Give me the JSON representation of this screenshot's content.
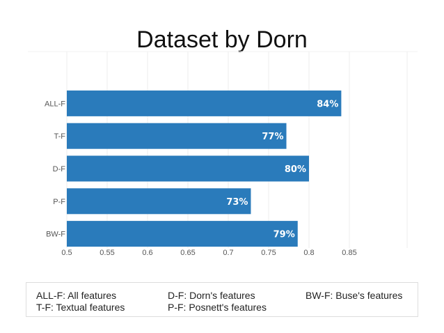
{
  "chart_data": {
    "type": "bar",
    "orientation": "horizontal",
    "title": "Dataset by Dorn",
    "xlabel": "",
    "ylabel": "",
    "categories": [
      "ALL-F",
      "T-F",
      "D-F",
      "P-F",
      "BW-F"
    ],
    "values": [
      0.84,
      0.772,
      0.8,
      0.728,
      0.786
    ],
    "data_labels": [
      "84%",
      "77%",
      "80%",
      "73%",
      "79%"
    ],
    "xlim": [
      0.5,
      0.9
    ],
    "x_ticks": [
      "0.5",
      "0.55",
      "0.6",
      "0.65",
      "0.7",
      "0.75",
      "0.8",
      "0.85"
    ],
    "grid": true,
    "bar_color": "#2a7bbb"
  },
  "legend": {
    "items": [
      "ALL-F: All features",
      "D-F: Dorn's features",
      "BW-F: Buse's features",
      "T-F: Textual features",
      "P-F: Posnett's features"
    ]
  }
}
